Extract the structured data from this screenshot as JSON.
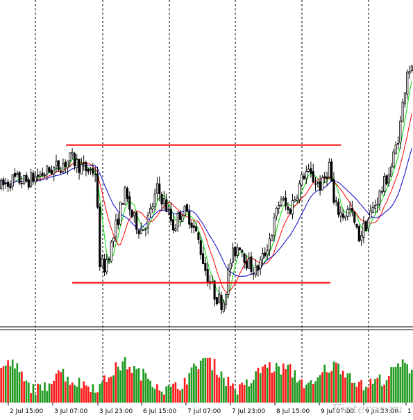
{
  "watermark": "Finteros.ru",
  "chart_data": {
    "type": "candlestick",
    "title": "",
    "xlabel": "",
    "ylabel": "",
    "grid": "vertical dashed separators only",
    "x_ticks": [
      "2 Jul 15:00",
      "3 Jul 07:00",
      "3 Jul 23:00",
      "6 Jul 15:00",
      "7 Jul 07:00",
      "7 Jul 23:00",
      "8 Jul 15:00",
      "9 Jul 07:00",
      "9 Jul 23:00",
      "1"
    ],
    "price_ylim": [
      0,
      100
    ],
    "volume_ylim": [
      0,
      100
    ],
    "colors": {
      "resistance": "#ff0000",
      "support": "#ff0000",
      "ma_fast": "#00dd00",
      "ma_mid": "#ff0000",
      "ma_slow": "#0000cc",
      "volume_up": "#1f9a1f",
      "volume_down": "#ff1a1a"
    },
    "levels": [
      {
        "name": "resistance",
        "price": 68.3,
        "x_from": 0.16,
        "x_to": 0.826
      },
      {
        "name": "support",
        "price": 14.5,
        "x_from": 0.175,
        "x_to": 0.8
      }
    ],
    "price_anchors": [
      [
        0,
        52
      ],
      [
        0.03,
        55
      ],
      [
        0.06,
        54
      ],
      [
        0.1,
        57
      ],
      [
        0.14,
        60
      ],
      [
        0.17,
        63
      ],
      [
        0.2,
        59
      ],
      [
        0.23,
        58
      ],
      [
        0.24,
        23
      ],
      [
        0.25,
        20
      ],
      [
        0.27,
        30
      ],
      [
        0.3,
        50
      ],
      [
        0.32,
        40
      ],
      [
        0.34,
        35
      ],
      [
        0.36,
        40
      ],
      [
        0.38,
        51
      ],
      [
        0.4,
        45
      ],
      [
        0.42,
        36
      ],
      [
        0.44,
        43
      ],
      [
        0.46,
        40
      ],
      [
        0.48,
        31
      ],
      [
        0.5,
        18
      ],
      [
        0.52,
        10
      ],
      [
        0.54,
        6
      ],
      [
        0.56,
        24
      ],
      [
        0.58,
        30
      ],
      [
        0.6,
        22
      ],
      [
        0.62,
        19
      ],
      [
        0.64,
        25
      ],
      [
        0.66,
        35
      ],
      [
        0.68,
        48
      ],
      [
        0.7,
        42
      ],
      [
        0.72,
        50
      ],
      [
        0.74,
        58
      ],
      [
        0.76,
        55
      ],
      [
        0.78,
        52
      ],
      [
        0.8,
        61
      ],
      [
        0.81,
        45
      ],
      [
        0.83,
        41
      ],
      [
        0.85,
        43
      ],
      [
        0.87,
        32
      ],
      [
        0.89,
        38
      ],
      [
        0.91,
        45
      ],
      [
        0.93,
        52
      ],
      [
        0.95,
        60
      ],
      [
        0.97,
        74
      ],
      [
        0.99,
        100
      ],
      [
        1,
        97
      ]
    ],
    "volume_anchors": [
      [
        0,
        55
      ],
      [
        0.03,
        65
      ],
      [
        0.06,
        30
      ],
      [
        0.1,
        18
      ],
      [
        0.14,
        55
      ],
      [
        0.17,
        35
      ],
      [
        0.2,
        30
      ],
      [
        0.24,
        25
      ],
      [
        0.27,
        50
      ],
      [
        0.3,
        65
      ],
      [
        0.33,
        50
      ],
      [
        0.36,
        40
      ],
      [
        0.4,
        20
      ],
      [
        0.43,
        25
      ],
      [
        0.46,
        45
      ],
      [
        0.49,
        72
      ],
      [
        0.52,
        60
      ],
      [
        0.55,
        35
      ],
      [
        0.58,
        20
      ],
      [
        0.61,
        35
      ],
      [
        0.64,
        60
      ],
      [
        0.67,
        55
      ],
      [
        0.7,
        55
      ],
      [
        0.73,
        35
      ],
      [
        0.76,
        25
      ],
      [
        0.79,
        55
      ],
      [
        0.82,
        60
      ],
      [
        0.85,
        45
      ],
      [
        0.88,
        25
      ],
      [
        0.91,
        35
      ],
      [
        0.94,
        40
      ],
      [
        0.97,
        62
      ],
      [
        1,
        55
      ]
    ]
  }
}
